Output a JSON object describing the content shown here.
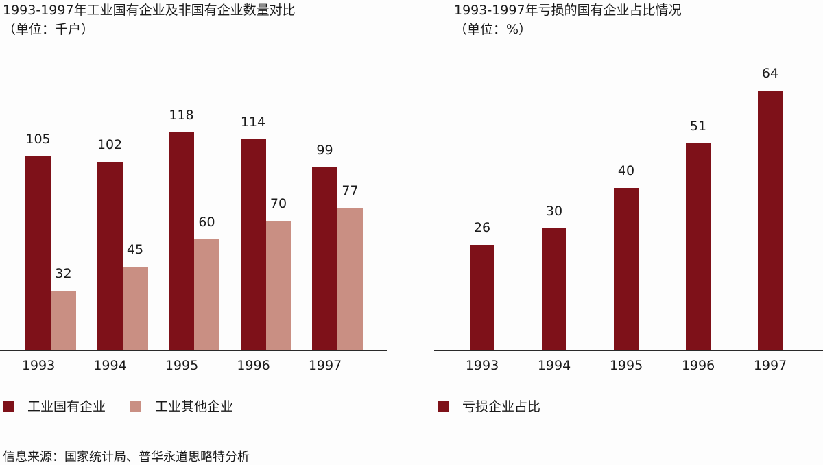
{
  "colors": {
    "state": "#7e1119",
    "other": "#c98f83",
    "loss": "#7e1119",
    "axis": "#2a2a2a"
  },
  "left": {
    "title": "1993-1997年工业国有企业及非国有企业数量对比",
    "unit": "（单位：千户）",
    "legend": [
      "工业国有企业",
      "工业其他企业"
    ]
  },
  "right": {
    "title": "1993-1997年亏损的国有企业占比情况",
    "unit": "（单位：%）",
    "legend": [
      "亏损企业占比"
    ]
  },
  "source": "信息来源：国家统计局、普华永道思略特分析",
  "chart_data": [
    {
      "type": "bar",
      "title": "1993-1997年工业国有企业及非国有企业数量对比",
      "subtitle": "（单位：千户）",
      "categories": [
        "1993",
        "1994",
        "1995",
        "1996",
        "1997"
      ],
      "series": [
        {
          "name": "工业国有企业",
          "values": [
            105,
            102,
            118,
            114,
            99
          ],
          "color": "#7e1119"
        },
        {
          "name": "工业其他企业",
          "values": [
            32,
            45,
            60,
            70,
            77
          ],
          "color": "#c98f83"
        }
      ],
      "xlabel": "",
      "ylabel": "千户",
      "grid": false,
      "legend_position": "bottom",
      "data_labels": true
    },
    {
      "type": "bar",
      "title": "1993-1997年亏损的国有企业占比情况",
      "subtitle": "（单位：%）",
      "categories": [
        "1993",
        "1994",
        "1995",
        "1996",
        "1997"
      ],
      "series": [
        {
          "name": "亏损企业占比",
          "values": [
            26,
            30,
            40,
            51,
            64
          ],
          "color": "#7e1119"
        }
      ],
      "xlabel": "",
      "ylabel": "%",
      "grid": false,
      "legend_position": "bottom",
      "data_labels": true
    }
  ]
}
